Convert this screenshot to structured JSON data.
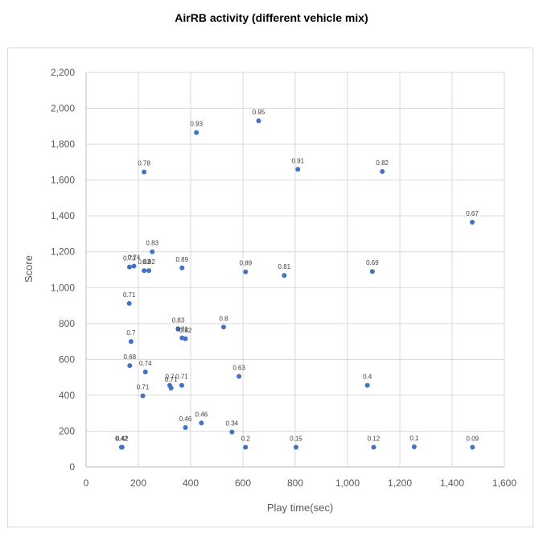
{
  "chart_data": {
    "type": "scatter",
    "title": "AirRB activity (different vehicle mix)",
    "xlabel": "Play time(sec)",
    "ylabel": "Score",
    "xlim": [
      0,
      1600
    ],
    "ylim": [
      0,
      2200
    ],
    "xticks": [
      0,
      200,
      400,
      600,
      800,
      1000,
      1200,
      1400,
      1600
    ],
    "yticks": [
      0,
      200,
      400,
      600,
      800,
      1000,
      1200,
      1400,
      1600,
      1800,
      2000,
      2200
    ],
    "xtick_labels": [
      "0",
      "200",
      "400",
      "600",
      "800",
      "1,000",
      "1,200",
      "1,400",
      "1,600"
    ],
    "ytick_labels": [
      "0",
      "200",
      "400",
      "600",
      "800",
      "1,000",
      "1,200",
      "1,400",
      "1,600",
      "1,800",
      "2,000",
      "2,200"
    ],
    "grid": true,
    "point_color": "#4472c4",
    "points": [
      {
        "x": 422,
        "y": 1865,
        "label": "0.93"
      },
      {
        "x": 660,
        "y": 1930,
        "label": "0.95"
      },
      {
        "x": 222,
        "y": 1645,
        "label": "0.78"
      },
      {
        "x": 810,
        "y": 1660,
        "label": "0.91"
      },
      {
        "x": 1133,
        "y": 1648,
        "label": "0.82"
      },
      {
        "x": 1477,
        "y": 1365,
        "label": "0.67"
      },
      {
        "x": 253,
        "y": 1200,
        "label": "0.83"
      },
      {
        "x": 166,
        "y": 1115,
        "label": "0.73"
      },
      {
        "x": 183,
        "y": 1120,
        "label": "0.74"
      },
      {
        "x": 222,
        "y": 1095,
        "label": "0.83"
      },
      {
        "x": 240,
        "y": 1095,
        "label": "0.82"
      },
      {
        "x": 367,
        "y": 1110,
        "label": "0.89"
      },
      {
        "x": 610,
        "y": 1088,
        "label": "0.89"
      },
      {
        "x": 758,
        "y": 1068,
        "label": "0.81"
      },
      {
        "x": 1095,
        "y": 1090,
        "label": "0.69"
      },
      {
        "x": 165,
        "y": 912,
        "label": "0.71"
      },
      {
        "x": 352,
        "y": 770,
        "label": "0.83"
      },
      {
        "x": 367,
        "y": 720,
        "label": "0.81"
      },
      {
        "x": 380,
        "y": 715,
        "label": "0.82"
      },
      {
        "x": 526,
        "y": 780,
        "label": "0.8"
      },
      {
        "x": 172,
        "y": 700,
        "label": "0.7"
      },
      {
        "x": 167,
        "y": 565,
        "label": "0.68"
      },
      {
        "x": 227,
        "y": 530,
        "label": "0.74"
      },
      {
        "x": 585,
        "y": 505,
        "label": "0.63"
      },
      {
        "x": 1076,
        "y": 455,
        "label": "0.4"
      },
      {
        "x": 320,
        "y": 455,
        "label": "0.7"
      },
      {
        "x": 325,
        "y": 440,
        "label": "0.71"
      },
      {
        "x": 366,
        "y": 455,
        "label": "0.71"
      },
      {
        "x": 217,
        "y": 397,
        "label": "0.71"
      },
      {
        "x": 441,
        "y": 245,
        "label": "0.46"
      },
      {
        "x": 380,
        "y": 220,
        "label": "0.46"
      },
      {
        "x": 558,
        "y": 195,
        "label": "0.34"
      },
      {
        "x": 135,
        "y": 110,
        "label": "0.42"
      },
      {
        "x": 138,
        "y": 110,
        "label": "0.42"
      },
      {
        "x": 610,
        "y": 110,
        "label": "0.2"
      },
      {
        "x": 803,
        "y": 110,
        "label": "0.15"
      },
      {
        "x": 1100,
        "y": 110,
        "label": "0.12"
      },
      {
        "x": 1255,
        "y": 112,
        "label": "0.1"
      },
      {
        "x": 1478,
        "y": 110,
        "label": "0.09"
      }
    ]
  }
}
